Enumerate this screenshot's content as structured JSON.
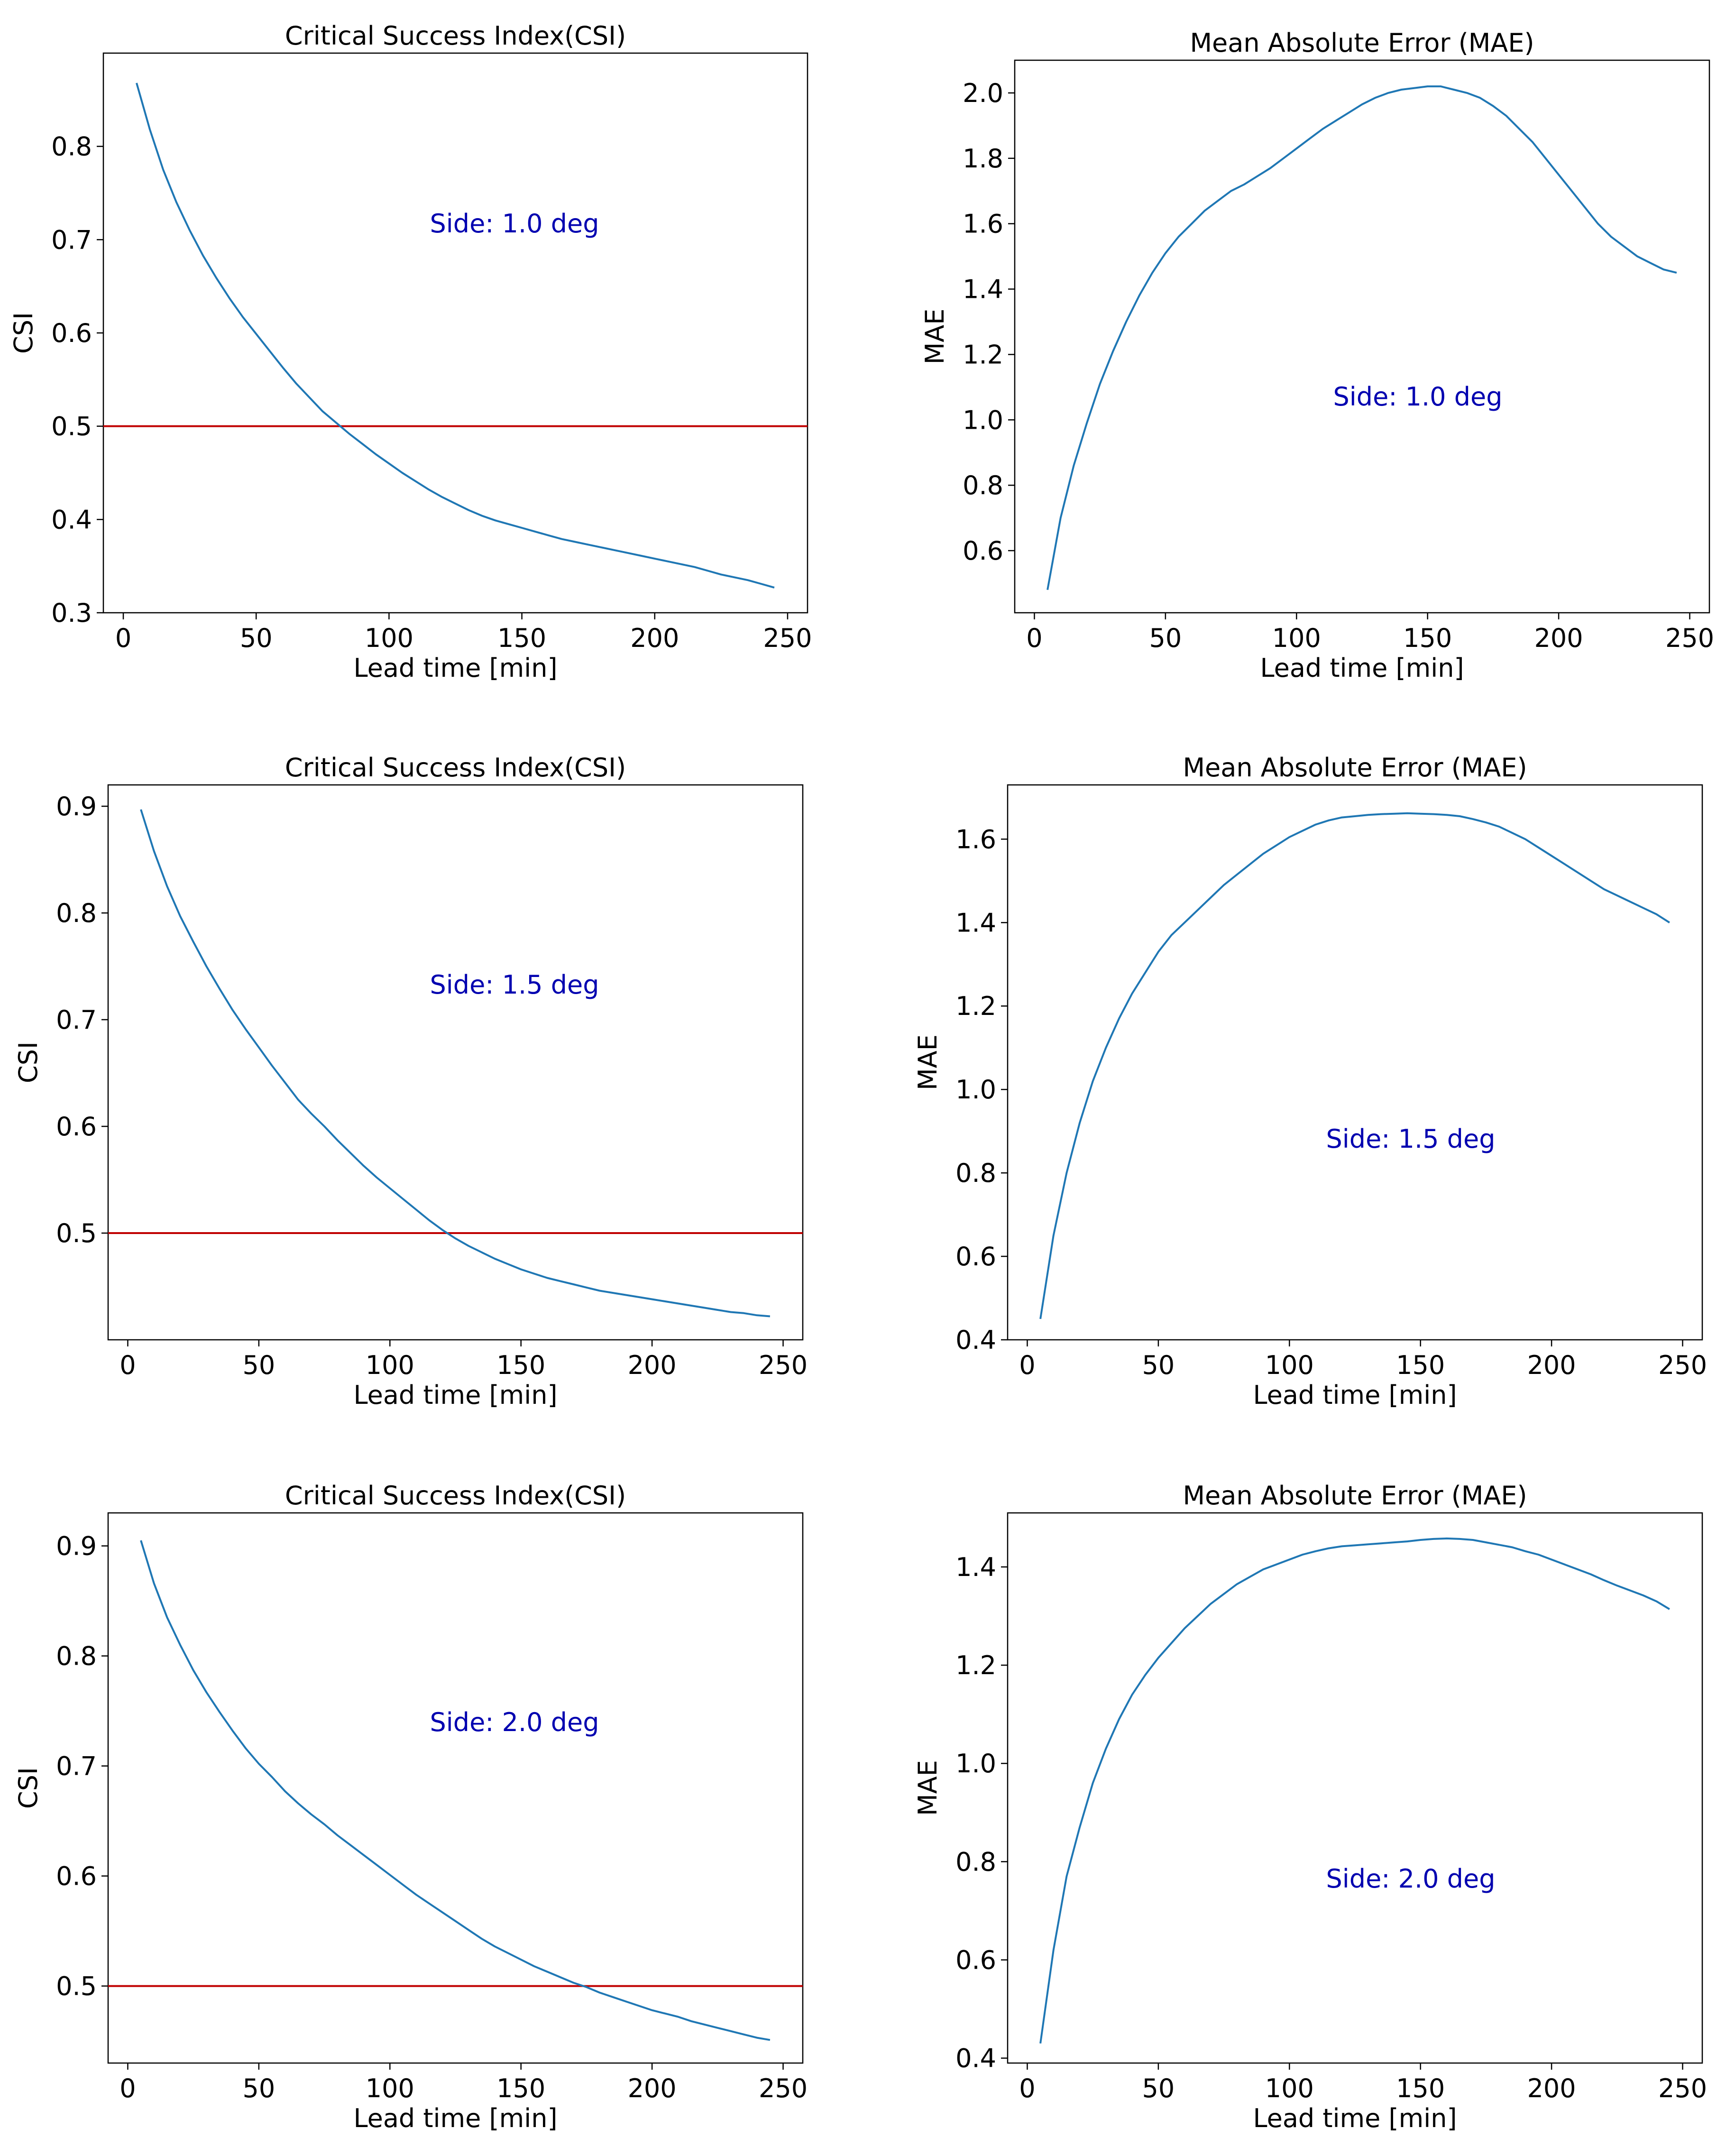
{
  "colors": {
    "line": "#1f77b4",
    "threshold": "#c00000",
    "annotation": "#0000b0",
    "axis": "#000000"
  },
  "chart_data": [
    {
      "type": "line",
      "title": "Critical Success Index(CSI)",
      "xlabel": "Lead time [min]",
      "ylabel": "CSI",
      "annotation": "Side: 1.0 deg",
      "xlim": [
        -7.5,
        257.5
      ],
      "ylim": [
        0.3,
        0.9
      ],
      "xticks": [
        0,
        50,
        100,
        150,
        200,
        250
      ],
      "xtick_labels": [
        "0",
        "50",
        "100",
        "150",
        "200",
        "250"
      ],
      "yticks": [
        0.3,
        0.4,
        0.5,
        0.6,
        0.7,
        0.8
      ],
      "ytick_labels": [
        "0.3",
        "0.4",
        "0.5",
        "0.6",
        "0.7",
        "0.8"
      ],
      "hline": 0.5,
      "x": [
        5,
        10,
        15,
        20,
        25,
        30,
        35,
        40,
        45,
        50,
        55,
        60,
        65,
        70,
        75,
        80,
        85,
        90,
        95,
        100,
        105,
        110,
        115,
        120,
        125,
        130,
        135,
        140,
        145,
        150,
        155,
        160,
        165,
        170,
        175,
        180,
        185,
        190,
        195,
        200,
        205,
        210,
        215,
        220,
        225,
        230,
        235,
        240,
        245
      ],
      "y": [
        0.868,
        0.818,
        0.775,
        0.74,
        0.71,
        0.683,
        0.659,
        0.637,
        0.617,
        0.599,
        0.581,
        0.563,
        0.546,
        0.531,
        0.516,
        0.504,
        0.492,
        0.481,
        0.47,
        0.46,
        0.45,
        0.441,
        0.432,
        0.424,
        0.417,
        0.41,
        0.404,
        0.399,
        0.395,
        0.391,
        0.387,
        0.383,
        0.379,
        0.376,
        0.373,
        0.37,
        0.367,
        0.364,
        0.361,
        0.358,
        0.355,
        0.352,
        0.349,
        0.345,
        0.341,
        0.338,
        0.335,
        0.331,
        0.327
      ]
    },
    {
      "type": "line",
      "title": "Mean Absolute Error (MAE)",
      "xlabel": "Lead time [min]",
      "ylabel": "MAE",
      "annotation": "Side: 1.0 deg",
      "xlim": [
        -7.5,
        257.5
      ],
      "ylim": [
        0.41,
        2.1
      ],
      "xticks": [
        0,
        50,
        100,
        150,
        200,
        250
      ],
      "xtick_labels": [
        "0",
        "50",
        "100",
        "150",
        "200",
        "250"
      ],
      "yticks": [
        0.6,
        0.8,
        1.0,
        1.2,
        1.4,
        1.6,
        1.8,
        2.0
      ],
      "ytick_labels": [
        "0.6",
        "0.8",
        "1.0",
        "1.2",
        "1.4",
        "1.6",
        "1.8",
        "2.0"
      ],
      "x": [
        5,
        10,
        15,
        20,
        25,
        30,
        35,
        40,
        45,
        50,
        55,
        60,
        65,
        70,
        75,
        80,
        85,
        90,
        95,
        100,
        105,
        110,
        115,
        120,
        125,
        130,
        135,
        140,
        145,
        150,
        155,
        160,
        165,
        170,
        175,
        180,
        185,
        190,
        195,
        200,
        205,
        210,
        215,
        220,
        225,
        230,
        235,
        240,
        245
      ],
      "y": [
        0.48,
        0.7,
        0.86,
        0.99,
        1.11,
        1.21,
        1.3,
        1.38,
        1.45,
        1.51,
        1.56,
        1.6,
        1.64,
        1.67,
        1.7,
        1.72,
        1.745,
        1.77,
        1.8,
        1.83,
        1.86,
        1.89,
        1.915,
        1.94,
        1.965,
        1.985,
        2.0,
        2.01,
        2.015,
        2.02,
        2.02,
        2.01,
        2.0,
        1.985,
        1.96,
        1.93,
        1.89,
        1.85,
        1.8,
        1.75,
        1.7,
        1.65,
        1.6,
        1.56,
        1.53,
        1.5,
        1.48,
        1.46,
        1.45
      ]
    },
    {
      "type": "line",
      "title": "Critical Success Index(CSI)",
      "xlabel": "Lead time [min]",
      "ylabel": "CSI",
      "annotation": "Side: 1.5 deg",
      "xlim": [
        -7.5,
        257.5
      ],
      "ylim": [
        0.4,
        0.92
      ],
      "xticks": [
        0,
        50,
        100,
        150,
        200,
        250
      ],
      "xtick_labels": [
        "0",
        "50",
        "100",
        "150",
        "200",
        "250"
      ],
      "yticks": [
        0.5,
        0.6,
        0.7,
        0.8,
        0.9
      ],
      "ytick_labels": [
        "0.5",
        "0.6",
        "0.7",
        "0.8",
        "0.9"
      ],
      "hline": 0.5,
      "x": [
        5,
        10,
        15,
        20,
        25,
        30,
        35,
        40,
        45,
        50,
        55,
        60,
        65,
        70,
        75,
        80,
        85,
        90,
        95,
        100,
        105,
        110,
        115,
        120,
        125,
        130,
        135,
        140,
        145,
        150,
        155,
        160,
        165,
        170,
        175,
        180,
        185,
        190,
        195,
        200,
        205,
        210,
        215,
        220,
        225,
        230,
        235,
        240,
        245
      ],
      "y": [
        0.897,
        0.858,
        0.825,
        0.797,
        0.773,
        0.75,
        0.729,
        0.709,
        0.691,
        0.674,
        0.657,
        0.641,
        0.625,
        0.612,
        0.6,
        0.587,
        0.575,
        0.563,
        0.552,
        0.542,
        0.532,
        0.522,
        0.512,
        0.503,
        0.495,
        0.488,
        0.482,
        0.476,
        0.471,
        0.466,
        0.462,
        0.458,
        0.455,
        0.452,
        0.449,
        0.446,
        0.444,
        0.442,
        0.44,
        0.438,
        0.436,
        0.434,
        0.432,
        0.43,
        0.428,
        0.426,
        0.425,
        0.423,
        0.422
      ]
    },
    {
      "type": "line",
      "title": "Mean Absolute Error (MAE)",
      "xlabel": "Lead time [min]",
      "ylabel": "MAE",
      "annotation": "Side: 1.5 deg",
      "xlim": [
        -7.5,
        257.5
      ],
      "ylim": [
        0.4,
        1.73
      ],
      "xticks": [
        0,
        50,
        100,
        150,
        200,
        250
      ],
      "xtick_labels": [
        "0",
        "50",
        "100",
        "150",
        "200",
        "250"
      ],
      "yticks": [
        0.4,
        0.6,
        0.8,
        1.0,
        1.2,
        1.4,
        1.6
      ],
      "ytick_labels": [
        "0.4",
        "0.6",
        "0.8",
        "1.0",
        "1.2",
        "1.4",
        "1.6"
      ],
      "x": [
        5,
        10,
        15,
        20,
        25,
        30,
        35,
        40,
        45,
        50,
        55,
        60,
        65,
        70,
        75,
        80,
        85,
        90,
        95,
        100,
        105,
        110,
        115,
        120,
        125,
        130,
        135,
        140,
        145,
        150,
        155,
        160,
        165,
        170,
        175,
        180,
        185,
        190,
        195,
        200,
        205,
        210,
        215,
        220,
        225,
        230,
        235,
        240,
        245
      ],
      "y": [
        0.45,
        0.65,
        0.8,
        0.92,
        1.02,
        1.1,
        1.17,
        1.23,
        1.28,
        1.33,
        1.37,
        1.4,
        1.43,
        1.46,
        1.49,
        1.515,
        1.54,
        1.565,
        1.585,
        1.605,
        1.62,
        1.635,
        1.645,
        1.652,
        1.655,
        1.658,
        1.66,
        1.661,
        1.662,
        1.661,
        1.66,
        1.658,
        1.655,
        1.648,
        1.64,
        1.63,
        1.615,
        1.6,
        1.58,
        1.56,
        1.54,
        1.52,
        1.5,
        1.48,
        1.465,
        1.45,
        1.435,
        1.42,
        1.4
      ]
    },
    {
      "type": "line",
      "title": "Critical Success Index(CSI)",
      "xlabel": "Lead time [min]",
      "ylabel": "CSI",
      "annotation": "Side: 2.0 deg",
      "xlim": [
        -7.5,
        257.5
      ],
      "ylim": [
        0.43,
        0.93
      ],
      "xticks": [
        0,
        50,
        100,
        150,
        200,
        250
      ],
      "xtick_labels": [
        "0",
        "50",
        "100",
        "150",
        "200",
        "250"
      ],
      "yticks": [
        0.5,
        0.6,
        0.7,
        0.8,
        0.9
      ],
      "ytick_labels": [
        "0.5",
        "0.6",
        "0.7",
        "0.8",
        "0.9"
      ],
      "hline": 0.5,
      "x": [
        5,
        10,
        15,
        20,
        25,
        30,
        35,
        40,
        45,
        50,
        55,
        60,
        65,
        70,
        75,
        80,
        85,
        90,
        95,
        100,
        105,
        110,
        115,
        120,
        125,
        130,
        135,
        140,
        145,
        150,
        155,
        160,
        165,
        170,
        175,
        180,
        185,
        190,
        195,
        200,
        205,
        210,
        215,
        220,
        225,
        230,
        235,
        240,
        245
      ],
      "y": [
        0.905,
        0.866,
        0.835,
        0.81,
        0.787,
        0.767,
        0.749,
        0.732,
        0.716,
        0.702,
        0.69,
        0.677,
        0.666,
        0.656,
        0.647,
        0.637,
        0.628,
        0.619,
        0.61,
        0.601,
        0.592,
        0.583,
        0.575,
        0.567,
        0.559,
        0.551,
        0.543,
        0.536,
        0.53,
        0.524,
        0.518,
        0.513,
        0.508,
        0.503,
        0.499,
        0.494,
        0.49,
        0.486,
        0.482,
        0.478,
        0.475,
        0.472,
        0.468,
        0.465,
        0.462,
        0.459,
        0.456,
        0.453,
        0.451
      ]
    },
    {
      "type": "line",
      "title": "Mean Absolute Error (MAE)",
      "xlabel": "Lead time [min]",
      "ylabel": "MAE",
      "annotation": "Side: 2.0 deg",
      "xlim": [
        -7.5,
        257.5
      ],
      "ylim": [
        0.39,
        1.51
      ],
      "xticks": [
        0,
        50,
        100,
        150,
        200,
        250
      ],
      "xtick_labels": [
        "0",
        "50",
        "100",
        "150",
        "200",
        "250"
      ],
      "yticks": [
        0.4,
        0.6,
        0.8,
        1.0,
        1.2,
        1.4
      ],
      "ytick_labels": [
        "0.4",
        "0.6",
        "0.8",
        "1.0",
        "1.2",
        "1.4"
      ],
      "x": [
        5,
        10,
        15,
        20,
        25,
        30,
        35,
        40,
        45,
        50,
        55,
        60,
        65,
        70,
        75,
        80,
        85,
        90,
        95,
        100,
        105,
        110,
        115,
        120,
        125,
        130,
        135,
        140,
        145,
        150,
        155,
        160,
        165,
        170,
        175,
        180,
        185,
        190,
        195,
        200,
        205,
        210,
        215,
        220,
        225,
        230,
        235,
        240,
        245
      ],
      "y": [
        0.43,
        0.62,
        0.77,
        0.87,
        0.96,
        1.03,
        1.09,
        1.14,
        1.18,
        1.215,
        1.245,
        1.275,
        1.3,
        1.325,
        1.345,
        1.365,
        1.38,
        1.395,
        1.405,
        1.415,
        1.425,
        1.432,
        1.438,
        1.442,
        1.444,
        1.446,
        1.448,
        1.45,
        1.452,
        1.455,
        1.457,
        1.458,
        1.457,
        1.455,
        1.45,
        1.445,
        1.44,
        1.432,
        1.425,
        1.415,
        1.405,
        1.395,
        1.385,
        1.373,
        1.362,
        1.352,
        1.342,
        1.33,
        1.314
      ]
    }
  ]
}
